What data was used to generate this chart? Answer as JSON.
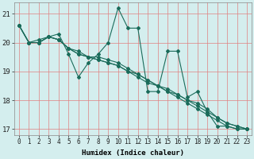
{
  "xlabel": "Humidex (Indice chaleur)",
  "bg_color": "#d4eeee",
  "grid_color": "#e08080",
  "line_color": "#1a6b5a",
  "xlim": [
    -0.5,
    23.5
  ],
  "ylim": [
    16.8,
    21.4
  ],
  "yticks": [
    17,
    18,
    19,
    20,
    21
  ],
  "xticks": [
    0,
    1,
    2,
    3,
    4,
    5,
    6,
    7,
    8,
    9,
    10,
    11,
    12,
    13,
    14,
    15,
    16,
    17,
    18,
    19,
    20,
    21,
    22,
    23
  ],
  "series": [
    [
      20.6,
      20.0,
      20.0,
      20.2,
      20.3,
      19.6,
      18.8,
      19.3,
      19.6,
      20.0,
      21.2,
      20.5,
      20.5,
      18.3,
      18.3,
      19.7,
      19.7,
      18.1,
      18.3,
      17.6,
      17.1,
      17.1,
      17.0,
      17.0
    ],
    [
      20.6,
      20.0,
      20.0,
      20.2,
      20.1,
      19.8,
      19.6,
      19.5,
      19.4,
      19.3,
      19.2,
      19.0,
      18.9,
      18.7,
      18.5,
      18.4,
      18.2,
      18.0,
      17.9,
      17.7,
      17.4,
      17.2,
      17.1,
      17.0
    ],
    [
      20.6,
      20.0,
      20.0,
      20.2,
      20.1,
      19.8,
      19.6,
      19.5,
      19.4,
      19.3,
      19.2,
      19.0,
      18.8,
      18.6,
      18.5,
      18.3,
      18.2,
      18.0,
      17.8,
      17.6,
      17.4,
      17.2,
      17.1,
      17.0
    ],
    [
      20.6,
      20.0,
      20.1,
      20.2,
      20.1,
      19.8,
      19.7,
      19.5,
      19.5,
      19.4,
      19.3,
      19.1,
      18.9,
      18.7,
      18.5,
      18.3,
      18.1,
      17.9,
      17.7,
      17.5,
      17.3,
      17.1,
      17.0,
      17.0
    ]
  ]
}
